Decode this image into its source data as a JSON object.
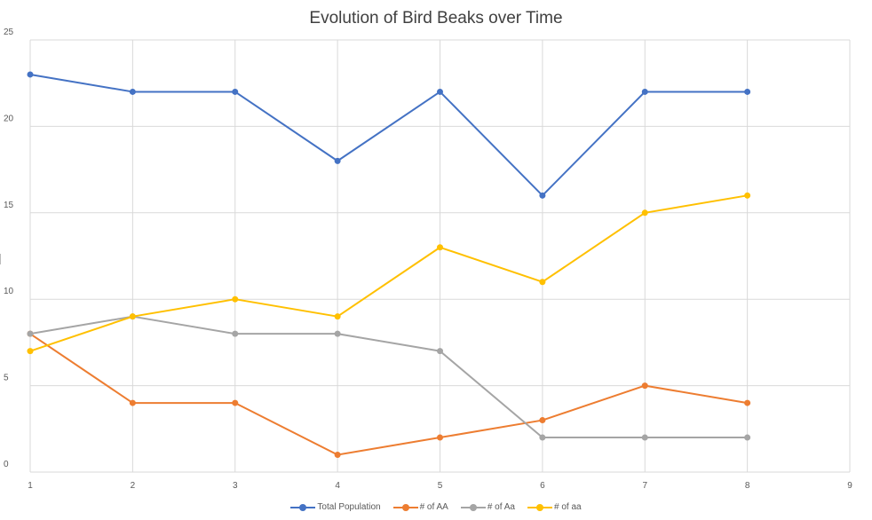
{
  "chart_data": {
    "type": "line",
    "title": "Evolution of Bird Beaks over Time",
    "xlabel": "",
    "ylabel": "",
    "x": [
      1,
      2,
      3,
      4,
      5,
      6,
      7,
      8
    ],
    "x_ticks": [
      1,
      2,
      3,
      4,
      5,
      6,
      7,
      8,
      9
    ],
    "y_ticks": [
      0,
      5,
      10,
      15,
      20,
      25
    ],
    "xlim": [
      1,
      9
    ],
    "ylim": [
      0,
      25
    ],
    "grid": true,
    "legend_position": "bottom",
    "series": [
      {
        "name": "Total Population",
        "color": "#4472C4",
        "values": [
          23,
          22,
          22,
          18,
          22,
          16,
          22,
          22
        ]
      },
      {
        "name": "# of AA",
        "color": "#ED7D31",
        "values": [
          8,
          4,
          4,
          1,
          2,
          3,
          5,
          4
        ]
      },
      {
        "name": "# of Aa",
        "color": "#A5A5A5",
        "values": [
          8,
          9,
          8,
          8,
          7,
          2,
          2,
          2
        ]
      },
      {
        "name": "# of aa",
        "color": "#FFC000",
        "values": [
          7,
          9,
          10,
          9,
          13,
          11,
          15,
          16
        ]
      }
    ]
  }
}
